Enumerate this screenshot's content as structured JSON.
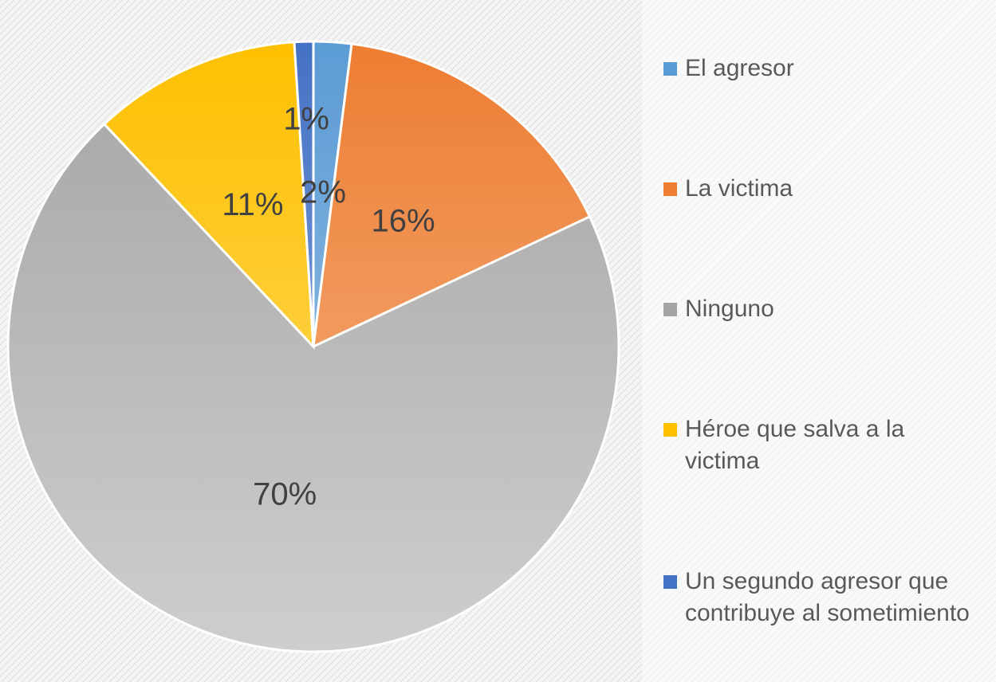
{
  "chart_data": {
    "type": "pie",
    "categories": [
      "El agresor",
      "La victima",
      "Ninguno",
      "Héroe que salva a la victima",
      "Un segundo agresor que contribuye al sometimiento"
    ],
    "values": [
      2,
      16,
      70,
      11,
      1
    ],
    "value_labels": [
      "2%",
      "16%",
      "70%",
      "11%",
      "1%"
    ],
    "colors": [
      "#5b9bd5",
      "#ed7d31",
      "#a5a5a5",
      "#ffc000",
      "#4472c4"
    ]
  }
}
